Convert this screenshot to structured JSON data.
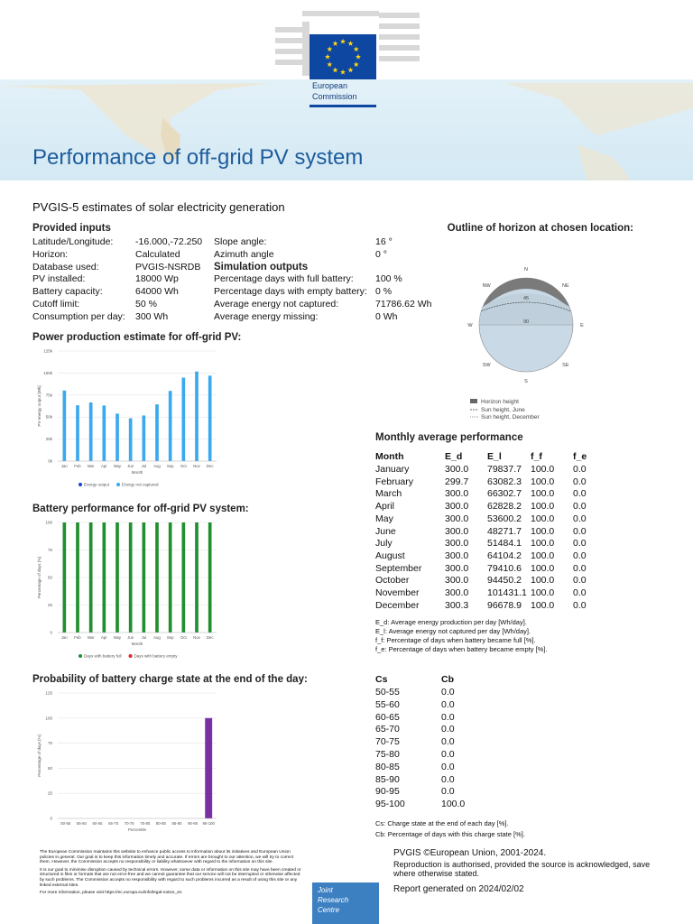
{
  "header": {
    "logo_lines": [
      "European",
      "Commission"
    ],
    "title": "Performance of off-grid PV system",
    "subtitle": "PVGIS-5 estimates of solar electricity generation"
  },
  "inputs": {
    "heading": "Provided inputs",
    "rows": [
      [
        "Latitude/Longitude:",
        "-16.000,-72.250"
      ],
      [
        "Horizon:",
        "Calculated"
      ],
      [
        "Database used:",
        "PVGIS-NSRDB"
      ],
      [
        "PV installed:",
        "18000 Wp"
      ],
      [
        "Battery capacity:",
        "64000 Wh"
      ],
      [
        "Cutoff limit:",
        "50 %"
      ],
      [
        "Consumption per day:",
        "300 Wh"
      ]
    ]
  },
  "angles": {
    "rows": [
      [
        "Slope angle:",
        "16 °"
      ],
      [
        "Azimuth angle",
        "0 °"
      ]
    ]
  },
  "outputs": {
    "heading": "Simulation outputs",
    "rows": [
      [
        "Percentage days with full battery:",
        "100 %"
      ],
      [
        "Percentage days with empty battery:",
        "0 %"
      ],
      [
        "Average energy not captured:",
        "71786.62 Wh"
      ],
      [
        "Average energy missing:",
        "0 Wh"
      ]
    ]
  },
  "horizon": {
    "heading": "Outline of horizon at chosen location:",
    "compass": [
      "N",
      "NE",
      "E",
      "SE",
      "S",
      "SW",
      "W",
      "NW"
    ],
    "rings": [
      "45",
      "90"
    ],
    "legend": [
      "Horizon height",
      "Sun height, June",
      "Sun height, December"
    ]
  },
  "chart_data": [
    {
      "type": "bar",
      "title": "Power production estimate for off-grid PV:",
      "x_label": "Month",
      "y_label": "PV energy output [Wh]",
      "categories": [
        "Jan",
        "Feb",
        "Mar",
        "Apr",
        "May",
        "Jun",
        "Jul",
        "Aug",
        "Sep",
        "Oct",
        "Nov",
        "Dec"
      ],
      "series": [
        {
          "name": "Energy output",
          "color": "#1b3fd4",
          "values": [
            300.0,
            299.7,
            300.0,
            300.0,
            300.0,
            300.0,
            300.0,
            300.0,
            300.0,
            300.0,
            300.0,
            300.3
          ]
        },
        {
          "name": "Energy not captured",
          "color": "#3aa9ee",
          "values": [
            79837.7,
            63082.3,
            66302.7,
            62828.2,
            53600.2,
            48271.7,
            51484.1,
            64104.2,
            79410.6,
            94450.2,
            101431.1,
            96678.9
          ]
        }
      ],
      "ylim": [
        0,
        125000
      ],
      "yticks": [
        {
          "value": 0,
          "label": "0k"
        },
        {
          "value": 25000,
          "label": "25k"
        },
        {
          "value": 50000,
          "label": "50k"
        },
        {
          "value": 75000,
          "label": "75k"
        },
        {
          "value": 100000,
          "label": "100k"
        },
        {
          "value": 125000,
          "label": "125k"
        }
      ],
      "grid": true
    },
    {
      "type": "bar",
      "title": "Battery performance for off-grid PV system:",
      "x_label": "Month",
      "y_label": "Percentage of days [%]",
      "categories": [
        "Jan",
        "Feb",
        "Mar",
        "Apr",
        "May",
        "Jun",
        "Jul",
        "Aug",
        "Sep",
        "Oct",
        "Nov",
        "Dec"
      ],
      "series": [
        {
          "name": "Days with battery full",
          "color": "#1f8f2f",
          "values": [
            100,
            100,
            100,
            100,
            100,
            100,
            100,
            100,
            100,
            100,
            100,
            100
          ]
        },
        {
          "name": "Days with battery empty",
          "color": "#e0242a",
          "values": [
            0,
            0,
            0,
            0,
            0,
            0,
            0,
            0,
            0,
            0,
            0,
            0
          ]
        }
      ],
      "ylim": [
        0,
        100
      ],
      "yticks": [
        0,
        25,
        50,
        75,
        100
      ],
      "grid": true
    },
    {
      "type": "bar",
      "title": "Probability of battery charge state at the end of the day:",
      "x_label": "Percentile",
      "y_label": "Percentage of days [%]",
      "categories": [
        "50-55",
        "55-60",
        "60-65",
        "65-70",
        "70-75",
        "75-80",
        "80-85",
        "85-90",
        "90-95",
        "95-100"
      ],
      "color": "#7a2fa3",
      "values": [
        0,
        0,
        0,
        0,
        0,
        0,
        0,
        0,
        0,
        100
      ],
      "ylim": [
        0,
        125
      ],
      "yticks": [
        0,
        25,
        50,
        75,
        100,
        125
      ],
      "grid": true
    }
  ],
  "monthly": {
    "heading": "Monthly average performance",
    "columns": [
      "Month",
      "E_d",
      "E_l",
      "f_f",
      "f_e"
    ],
    "rows": [
      [
        "January",
        "300.0",
        "79837.7",
        "100.0",
        "0.0"
      ],
      [
        "February",
        "299.7",
        "63082.3",
        "100.0",
        "0.0"
      ],
      [
        "March",
        "300.0",
        "66302.7",
        "100.0",
        "0.0"
      ],
      [
        "April",
        "300.0",
        "62828.2",
        "100.0",
        "0.0"
      ],
      [
        "May",
        "300.0",
        "53600.2",
        "100.0",
        "0.0"
      ],
      [
        "June",
        "300.0",
        "48271.7",
        "100.0",
        "0.0"
      ],
      [
        "July",
        "300.0",
        "51484.1",
        "100.0",
        "0.0"
      ],
      [
        "August",
        "300.0",
        "64104.2",
        "100.0",
        "0.0"
      ],
      [
        "September",
        "300.0",
        "79410.6",
        "100.0",
        "0.0"
      ],
      [
        "October",
        "300.0",
        "94450.2",
        "100.0",
        "0.0"
      ],
      [
        "November",
        "300.0",
        "101431.1",
        "100.0",
        "0.0"
      ],
      [
        "December",
        "300.3",
        "96678.9",
        "100.0",
        "0.0"
      ]
    ],
    "notes": [
      "E_d: Average energy production per day [Wh/day].",
      "E_l: Average energy not captured per day [Wh/day].",
      "f_f: Percentage of days when battery became full [%].",
      "f_e: Percentage of days when battery became empty [%]."
    ]
  },
  "charge": {
    "columns": [
      "Cs",
      "Cb"
    ],
    "rows": [
      [
        "50-55",
        "0.0"
      ],
      [
        "55-60",
        "0.0"
      ],
      [
        "60-65",
        "0.0"
      ],
      [
        "65-70",
        "0.0"
      ],
      [
        "70-75",
        "0.0"
      ],
      [
        "75-80",
        "0.0"
      ],
      [
        "80-85",
        "0.0"
      ],
      [
        "85-90",
        "0.0"
      ],
      [
        "90-95",
        "0.0"
      ],
      [
        "95-100",
        "100.0"
      ]
    ],
    "notes": [
      "Cs: Charge state at the end of each day [%].",
      "Cb: Percentage of days with this charge state [%]."
    ]
  },
  "footer": {
    "disclaimer": [
      "The European Commission maintains this website to enhance public access to information about its initiatives and European Union policies in general. Our goal is to keep this information timely and accurate. If errors are brought to our attention, we will try to correct them. However, the Commission accepts no responsibility or liability whatsoever with regard to the information on this site.",
      "It is our goal to minimise disruption caused by technical errors. However, some data or information on this site may have been created or structured in files or formats that are not error-free and we cannot guarantee that our service will not be interrupted or otherwise affected by such problems. The Commission accepts no responsibility with regard to such problems incurred as a result of using this site or any linked external sites.",
      "For more information, please visit https://ec.europa.eu/info/legal-notice_en"
    ],
    "copyright": "PVGIS ©European Union, 2001-2024.",
    "reproduction": "Reproduction is authorised, provided the source is acknowledged, save where otherwise stated.",
    "report": "Report generated on 2024/02/02",
    "jrc": [
      "Joint",
      "Research",
      "Centre"
    ]
  }
}
